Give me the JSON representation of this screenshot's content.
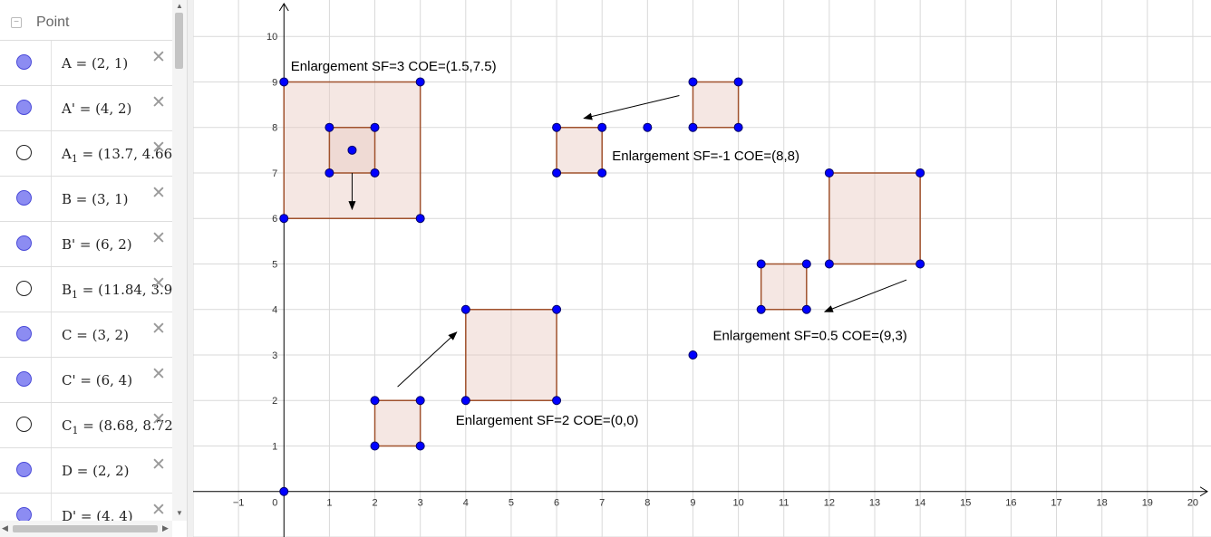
{
  "algebra": {
    "category": {
      "label": "Point",
      "toggle": "−"
    },
    "rows": [
      {
        "name": "A",
        "sub": "",
        "prime": false,
        "value": "(2, 1)",
        "shown": true
      },
      {
        "name": "A",
        "sub": "",
        "prime": true,
        "value": "(4, 2)",
        "shown": true
      },
      {
        "name": "A",
        "sub": "1",
        "prime": false,
        "value": "(13.7, 4.66",
        "shown": false
      },
      {
        "name": "B",
        "sub": "",
        "prime": false,
        "value": "(3, 1)",
        "shown": true
      },
      {
        "name": "B",
        "sub": "",
        "prime": true,
        "value": "(6, 2)",
        "shown": true
      },
      {
        "name": "B",
        "sub": "1",
        "prime": false,
        "value": "(11.84, 3.9",
        "shown": false
      },
      {
        "name": "C",
        "sub": "",
        "prime": false,
        "value": "(3, 2)",
        "shown": true
      },
      {
        "name": "C",
        "sub": "",
        "prime": true,
        "value": "(6, 4)",
        "shown": true
      },
      {
        "name": "C",
        "sub": "1",
        "prime": false,
        "value": "(8.68, 8.72",
        "shown": false
      },
      {
        "name": "D",
        "sub": "",
        "prime": false,
        "value": "(2, 2)",
        "shown": true
      },
      {
        "name": "D",
        "sub": "",
        "prime": true,
        "value": "(4, 4)",
        "shown": true
      }
    ],
    "delete_glyph": "✕"
  },
  "colors": {
    "point_fill": "#0000ff",
    "point_stroke": "#000066",
    "polygon_stroke": "#a0522d",
    "polygon_fill": "#e9c9c0",
    "grid": "#d9d9d9",
    "axis": "#000000",
    "marble_shown": "#8c8cf2"
  },
  "chart_data": {
    "type": "scatter",
    "title": "",
    "xlim": [
      -2,
      20.4
    ],
    "ylim": [
      -1,
      10.8
    ],
    "x_ticks": [
      "−1",
      "0",
      "1",
      "2",
      "3",
      "4",
      "5",
      "6",
      "7",
      "8",
      "9",
      "10",
      "11",
      "12",
      "13",
      "14",
      "15",
      "16",
      "17",
      "18",
      "19",
      "20"
    ],
    "y_ticks": [
      "1",
      "2",
      "3",
      "4",
      "5",
      "6",
      "7",
      "8",
      "9",
      "10"
    ],
    "polygons": [
      {
        "name": "sf3-image",
        "points": [
          [
            0,
            6
          ],
          [
            3,
            6
          ],
          [
            3,
            9
          ],
          [
            0,
            9
          ]
        ]
      },
      {
        "name": "sf3-object",
        "points": [
          [
            1,
            7
          ],
          [
            2,
            7
          ],
          [
            2,
            8
          ],
          [
            1,
            8
          ]
        ]
      },
      {
        "name": "sfneg1-object",
        "points": [
          [
            9,
            8
          ],
          [
            10,
            8
          ],
          [
            10,
            9
          ],
          [
            9,
            9
          ]
        ]
      },
      {
        "name": "sfneg1-image",
        "points": [
          [
            6,
            7
          ],
          [
            7,
            7
          ],
          [
            7,
            8
          ],
          [
            6,
            8
          ]
        ]
      },
      {
        "name": "sf2-object",
        "points": [
          [
            2,
            1
          ],
          [
            3,
            1
          ],
          [
            3,
            2
          ],
          [
            2,
            2
          ]
        ]
      },
      {
        "name": "sf2-image",
        "points": [
          [
            4,
            2
          ],
          [
            6,
            2
          ],
          [
            6,
            4
          ],
          [
            4,
            4
          ]
        ]
      },
      {
        "name": "sf05-object",
        "points": [
          [
            12,
            5
          ],
          [
            14,
            5
          ],
          [
            14,
            7
          ],
          [
            12,
            7
          ]
        ]
      },
      {
        "name": "sf05-image",
        "points": [
          [
            10.5,
            4
          ],
          [
            11.5,
            4
          ],
          [
            11.5,
            5
          ],
          [
            10.5,
            5
          ]
        ]
      }
    ],
    "points": [
      [
        0,
        6
      ],
      [
        3,
        6
      ],
      [
        3,
        9
      ],
      [
        0,
        9
      ],
      [
        1,
        7
      ],
      [
        2,
        7
      ],
      [
        2,
        8
      ],
      [
        1,
        8
      ],
      [
        1.5,
        7.5
      ],
      [
        9,
        8
      ],
      [
        10,
        8
      ],
      [
        10,
        9
      ],
      [
        9,
        9
      ],
      [
        6,
        7
      ],
      [
        7,
        7
      ],
      [
        7,
        8
      ],
      [
        6,
        8
      ],
      [
        8,
        8
      ],
      [
        2,
        1
      ],
      [
        3,
        1
      ],
      [
        3,
        2
      ],
      [
        2,
        2
      ],
      [
        4,
        2
      ],
      [
        6,
        2
      ],
      [
        6,
        4
      ],
      [
        4,
        4
      ],
      [
        0,
        0
      ],
      [
        12,
        5
      ],
      [
        14,
        5
      ],
      [
        14,
        7
      ],
      [
        12,
        7
      ],
      [
        10.5,
        4
      ],
      [
        11.5,
        4
      ],
      [
        11.5,
        5
      ],
      [
        10.5,
        5
      ],
      [
        9,
        3
      ]
    ],
    "arrows": [
      {
        "from": [
          1.5,
          7.0
        ],
        "to": [
          1.5,
          6.2
        ]
      },
      {
        "from": [
          8.7,
          8.7
        ],
        "to": [
          6.6,
          8.2
        ]
      },
      {
        "from": [
          2.5,
          2.3
        ],
        "to": [
          3.8,
          3.5
        ]
      },
      {
        "from": [
          13.7,
          4.65
        ],
        "to": [
          11.9,
          3.95
        ]
      }
    ],
    "annotations": [
      {
        "text": "Enlargement SF=3 COE=(1.5,7.5)",
        "at": [
          0.15,
          9.25
        ]
      },
      {
        "text": "Enlargement SF=-1 COE=(8,8)",
        "at": [
          7.22,
          7.28
        ]
      },
      {
        "text": "Enlargement SF=2 COE=(0,0)",
        "at": [
          3.78,
          1.47
        ]
      },
      {
        "text": "Enlargement SF=0.5 COE=(9,3)",
        "at": [
          9.44,
          3.33
        ]
      }
    ]
  }
}
